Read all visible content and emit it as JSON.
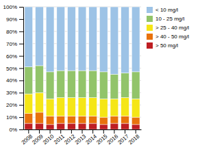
{
  "chart_data": {
    "type": "bar",
    "stacked": true,
    "categories": [
      "2008",
      "2009",
      "2010",
      "2011",
      "2012",
      "2013",
      "2014",
      "2015",
      "2016",
      "2017",
      "2018"
    ],
    "series": [
      {
        "name": "> 50 mg/l",
        "color": "#be1e23",
        "values": [
          5,
          5,
          4,
          5,
          5,
          5,
          5,
          4,
          5,
          5,
          4
        ]
      },
      {
        "name": "> 40 - 50 mg/l",
        "color": "#e8720c",
        "values": [
          8,
          9,
          7,
          6,
          6,
          6,
          6,
          6,
          6,
          6,
          6
        ]
      },
      {
        "name": "> 25 - 40 mg/l",
        "color": "#f5e616",
        "values": [
          16,
          16,
          14,
          15,
          15,
          15,
          15,
          15,
          14,
          15,
          15
        ]
      },
      {
        "name": "10 - 25 mg/l",
        "color": "#92c46a",
        "values": [
          22,
          22,
          22,
          22,
          22,
          22,
          22,
          22,
          20,
          20,
          22
        ]
      },
      {
        "name": "< 10 mg/l",
        "color": "#9dc3e6",
        "values": [
          49,
          48,
          53,
          52,
          52,
          52,
          52,
          53,
          55,
          54,
          53
        ]
      }
    ],
    "ylim": [
      0,
      100
    ],
    "yticks": [
      {
        "value": 0,
        "label": "0%"
      },
      {
        "value": 10,
        "label": "10%"
      },
      {
        "value": 20,
        "label": "20%"
      },
      {
        "value": 30,
        "label": "30%"
      },
      {
        "value": 40,
        "label": "40%"
      },
      {
        "value": 50,
        "label": "50%"
      },
      {
        "value": 60,
        "label": "60%"
      },
      {
        "value": 70,
        "label": "70%"
      },
      {
        "value": 80,
        "label": "80%"
      },
      {
        "value": 90,
        "label": "90%"
      },
      {
        "value": 100,
        "label": "100%"
      }
    ],
    "grid": true,
    "legend": "right"
  }
}
